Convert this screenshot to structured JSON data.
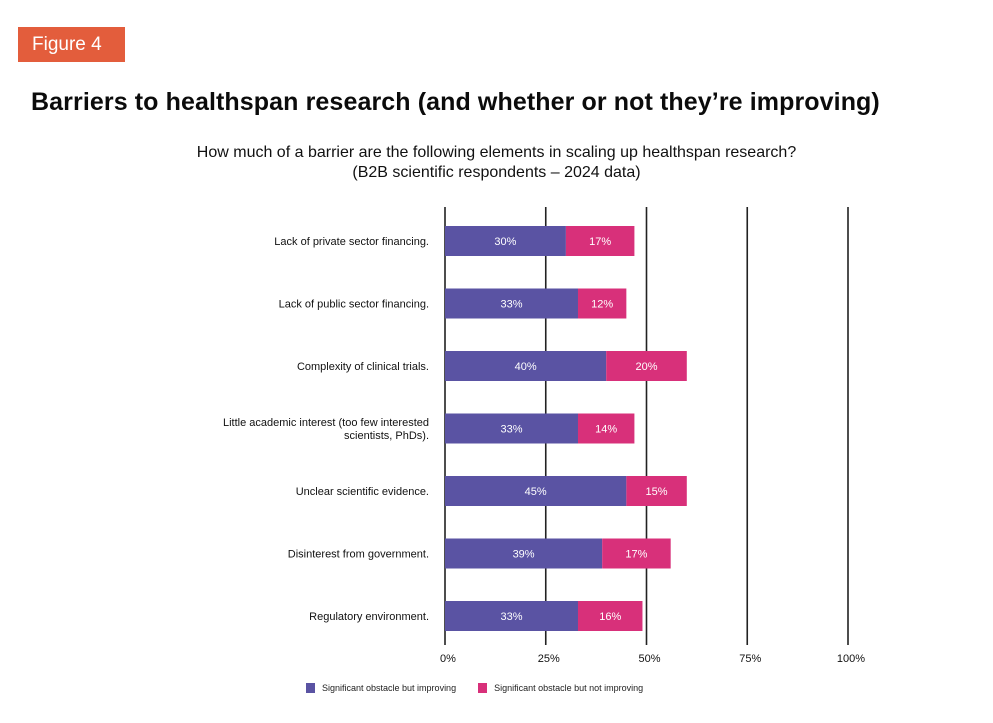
{
  "figure_badge": "Figure 4",
  "title": "Barriers to healthspan research (and whether or not they’re improving)",
  "subtitle_line1": "How much of a barrier are the following elements in scaling up healthspan research?",
  "subtitle_line2": "(B2B scientific respondents – 2024 data)",
  "colors": {
    "badge": "#e35d3c",
    "improving": "#5a53a3",
    "not_improving": "#d8307a",
    "gridline": "#222222"
  },
  "chart_data": {
    "type": "bar",
    "orientation": "horizontal",
    "stacked": true,
    "title": "Barriers to healthspan research (and whether or not they’re improving)",
    "subtitle": "How much of a barrier are the following elements in scaling up healthspan research? (B2B scientific respondents – 2024 data)",
    "xlabel": "",
    "ylabel": "",
    "xlim": [
      0,
      100
    ],
    "x_ticks": [
      0,
      25,
      50,
      75,
      100
    ],
    "x_tick_labels": [
      "0%",
      "25%",
      "50%",
      "75%",
      "100%"
    ],
    "grid": true,
    "legend_position": "bottom",
    "categories": [
      [
        "Lack of private sector financing."
      ],
      [
        "Lack of public sector financing."
      ],
      [
        "Complexity of clinical trials."
      ],
      [
        "Little academic interest (too few interested",
        "scientists, PhDs)."
      ],
      [
        "Unclear scientific evidence."
      ],
      [
        "Disinterest from government."
      ],
      [
        "Regulatory environment."
      ]
    ],
    "series": [
      {
        "name": "Significant obstacle but improving",
        "color": "#5a53a3",
        "values": [
          30,
          33,
          40,
          33,
          45,
          39,
          33
        ],
        "labels": [
          "30%",
          "33%",
          "40%",
          "33%",
          "45%",
          "39%",
          "33%"
        ]
      },
      {
        "name": "Significant obstacle but not improving",
        "color": "#d8307a",
        "values": [
          17,
          12,
          20,
          14,
          15,
          17,
          16
        ],
        "labels": [
          "17%",
          "12%",
          "20%",
          "14%",
          "15%",
          "17%",
          "16%"
        ]
      }
    ]
  }
}
